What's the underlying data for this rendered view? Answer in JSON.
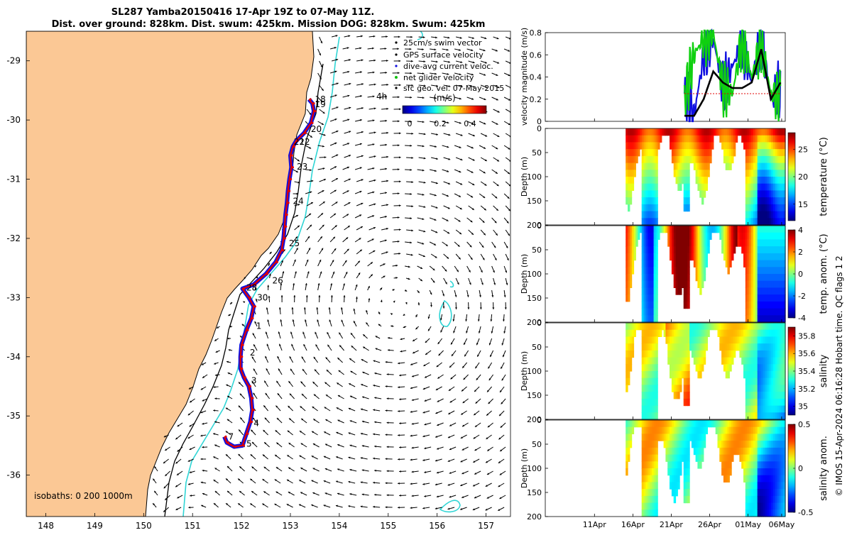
{
  "title": {
    "line1": "SL287 Yamba20150416 17-Apr 19Z to 07-May 11Z.",
    "line2": "Dist. over ground: 828km. Dist. swum: 425km. Mission DOG: 828km. Swum: 425km"
  },
  "map": {
    "lat_ticks": [
      "-29",
      "-30",
      "-31",
      "-32",
      "-33",
      "-34",
      "-35",
      "-36"
    ],
    "lon_ticks": [
      "148",
      "149",
      "150",
      "151",
      "152",
      "153",
      "154",
      "155",
      "156",
      "157"
    ],
    "lat_values": [
      -29,
      -30,
      -31,
      -32,
      -33,
      -34,
      -35,
      -36
    ],
    "lon_values": [
      148,
      149,
      150,
      151,
      152,
      153,
      154,
      155,
      156,
      157
    ],
    "xlim": [
      147.6,
      157.5
    ],
    "ylim": [
      -36.7,
      -28.5
    ],
    "legend": [
      "25cm/s swim vector",
      "GPS surface velocity",
      "dive-avg current veloc.",
      "net glider velocity",
      "sfc geo. vel. 07-May-2015"
    ],
    "vector_tag": "4h",
    "colorbar": {
      "label": "(m/s)",
      "ticks": [
        "0",
        "0.2",
        "0.4"
      ]
    },
    "isobaths_label": "isobaths: 0   200  1000m",
    "day_labels": [
      {
        "t": "18",
        "lon": 153.5,
        "lat": -29.7
      },
      {
        "t": "19",
        "lon": 153.5,
        "lat": -29.78
      },
      {
        "t": "20",
        "lon": 153.42,
        "lat": -30.2
      },
      {
        "t": "21",
        "lon": 153.07,
        "lat": -30.42
      },
      {
        "t": "22",
        "lon": 153.18,
        "lat": -30.42
      },
      {
        "t": "23",
        "lon": 153.13,
        "lat": -30.84
      },
      {
        "t": "24",
        "lon": 153.05,
        "lat": -31.42
      },
      {
        "t": "25",
        "lon": 152.97,
        "lat": -32.13
      },
      {
        "t": "26",
        "lon": 152.63,
        "lat": -32.76
      },
      {
        "t": "28",
        "lon": 152.1,
        "lat": -32.88
      },
      {
        "t": "30",
        "lon": 152.32,
        "lat": -33.05
      },
      {
        "t": "1",
        "lon": 152.3,
        "lat": -33.53
      },
      {
        "t": "2",
        "lon": 152.17,
        "lat": -33.98
      },
      {
        "t": "3",
        "lon": 152.2,
        "lat": -34.45
      },
      {
        "t": "4",
        "lon": 152.25,
        "lat": -35.17
      },
      {
        "t": "5",
        "lon": 152.1,
        "lat": -35.52
      },
      {
        "t": "7",
        "lon": 151.73,
        "lat": -35.4
      }
    ],
    "track": [
      [
        153.38,
        -29.65
      ],
      [
        153.45,
        -29.72
      ],
      [
        153.48,
        -29.85
      ],
      [
        153.42,
        -30.05
      ],
      [
        153.28,
        -30.22
      ],
      [
        153.12,
        -30.35
      ],
      [
        153.05,
        -30.45
      ],
      [
        153.0,
        -30.6
      ],
      [
        153.02,
        -30.8
      ],
      [
        152.98,
        -31.0
      ],
      [
        152.95,
        -31.2
      ],
      [
        152.93,
        -31.4
      ],
      [
        152.9,
        -31.6
      ],
      [
        152.88,
        -31.8
      ],
      [
        152.86,
        -32.0
      ],
      [
        152.82,
        -32.2
      ],
      [
        152.7,
        -32.4
      ],
      [
        152.5,
        -32.6
      ],
      [
        152.25,
        -32.78
      ],
      [
        152.02,
        -32.85
      ],
      [
        152.15,
        -33.0
      ],
      [
        152.25,
        -33.15
      ],
      [
        152.2,
        -33.35
      ],
      [
        152.1,
        -33.55
      ],
      [
        152.0,
        -33.8
      ],
      [
        151.98,
        -34.0
      ],
      [
        151.98,
        -34.2
      ],
      [
        152.05,
        -34.35
      ],
      [
        152.15,
        -34.5
      ],
      [
        152.2,
        -34.7
      ],
      [
        152.22,
        -34.9
      ],
      [
        152.18,
        -35.1
      ],
      [
        152.1,
        -35.3
      ],
      [
        152.02,
        -35.5
      ],
      [
        151.85,
        -35.52
      ],
      [
        151.7,
        -35.45
      ],
      [
        151.65,
        -35.35
      ]
    ]
  },
  "panels": {
    "x_ticks": [
      "11Apr",
      "16Apr",
      "21Apr",
      "26Apr",
      "01May",
      "06May"
    ],
    "velocity": {
      "ylabel": "velocity magnitude (m/s)",
      "y_ticks": [
        "0",
        "0.2",
        "0.4",
        "0.6",
        "0.8"
      ]
    },
    "depth_panels": [
      {
        "ylabel": "Depth (m)",
        "cbar_label": "temperature (°C)",
        "cbar_ticks": [
          "15",
          "20",
          "25"
        ],
        "cmin": 12,
        "cmax": 28
      },
      {
        "ylabel": "Depth (m)",
        "cbar_label": "temp. anom. (°C)",
        "cbar_ticks": [
          "-4",
          "-2",
          "0",
          "2",
          "4"
        ],
        "cmin": -4,
        "cmax": 4
      },
      {
        "ylabel": "Depth (m)",
        "cbar_label": "salinity",
        "cbar_ticks": [
          "35",
          "35.2",
          "35.4",
          "35.6",
          "35.8"
        ],
        "cmin": 34.9,
        "cmax": 35.9
      },
      {
        "ylabel": "Depth (m)",
        "cbar_label": "salinity anom.",
        "cbar_ticks": [
          "-0.5",
          "0",
          "0.5"
        ],
        "cmin": -0.5,
        "cmax": 0.5
      }
    ],
    "depth_ticks": [
      "0",
      "50",
      "100",
      "150",
      "200"
    ]
  },
  "footer_vertical": "© IMOS 15-Apr-2024 06:16:28 Hobart time. QC flags 1  2",
  "colors": {
    "land": "#FBC895",
    "track_red": "#E00000",
    "track_blue": "#1010E0",
    "isobath_cyan": "#30D5D5"
  },
  "chart_data": [
    {
      "type": "scatter",
      "title": "SL287 Yamba20150416 17-Apr 19Z to 07-May 11Z.",
      "xlabel": "",
      "ylabel": "",
      "xlim": [
        147.6,
        157.5
      ],
      "ylim": [
        -36.7,
        -28.5
      ],
      "series": [
        {
          "name": "glider track"
        }
      ]
    },
    {
      "type": "line",
      "ylabel": "velocity magnitude (m/s)",
      "ylim": [
        0,
        0.8
      ],
      "x_ticks": [
        "11Apr",
        "16Apr",
        "21Apr",
        "26Apr",
        "01May",
        "06May"
      ],
      "series": [
        {
          "name": "dive-avg current veloc.",
          "x": [
            0.58,
            0.62,
            0.66,
            0.7,
            0.74,
            0.78,
            0.82,
            0.86,
            0.9,
            0.94,
            0.98
          ],
          "values": [
            0.25,
            0.05,
            0.6,
            0.75,
            0.3,
            0.5,
            0.7,
            0.35,
            0.75,
            0.2,
            0.3
          ]
        },
        {
          "name": "net glider velocity",
          "x": [
            0.58,
            0.62,
            0.66,
            0.7,
            0.74,
            0.78,
            0.82,
            0.86,
            0.9,
            0.94,
            0.98
          ],
          "values": [
            0.2,
            0.6,
            0.75,
            0.8,
            0.3,
            0.25,
            0.75,
            0.4,
            0.7,
            0.25,
            0.2
          ]
        },
        {
          "name": "black",
          "x": [
            0.58,
            0.62,
            0.66,
            0.7,
            0.74,
            0.78,
            0.82,
            0.86,
            0.9,
            0.94,
            0.98
          ],
          "values": [
            0.05,
            0.05,
            0.2,
            0.45,
            0.35,
            0.3,
            0.3,
            0.35,
            0.65,
            0.2,
            0.35
          ]
        },
        {
          "name": "25cm/s swim vector",
          "x": [
            0.58,
            0.98
          ],
          "values": [
            0.25,
            0.25
          ]
        }
      ]
    }
  ]
}
